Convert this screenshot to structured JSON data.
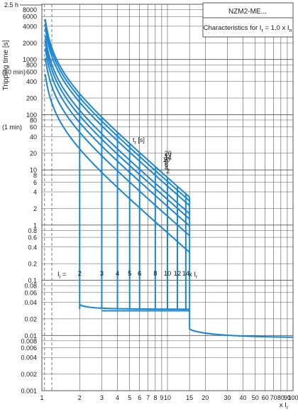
{
  "chart_data": {
    "type": "line",
    "title": "NZM2-ME...",
    "subtitle": {
      "text": "Characteristics for I",
      "sub1": "r",
      "mid": " = 1,0 x I",
      "sub2": "n"
    },
    "ylabel": "Tripping time [s]",
    "xlabel": {
      "prefix": "x I",
      "sub": "r"
    },
    "x_scale": "log",
    "y_scale": "log",
    "xlim": [
      1,
      100
    ],
    "ylim": [
      0.001,
      10000
    ],
    "x_ticks": [
      "1",
      "2",
      "3",
      "4",
      "5",
      "6",
      "7",
      "8",
      "9",
      "10",
      "15",
      "20",
      "30",
      "40",
      "50",
      "60",
      "70",
      "80",
      "90",
      "100"
    ],
    "y_ticks": [
      "0.001",
      "0.002",
      "0.004",
      "0.006",
      "0.008",
      "0.01",
      "0.02",
      "0.04",
      "0.06",
      "0.08",
      "0.1",
      "0.2",
      "0.4",
      "0.6",
      "0.8",
      "1",
      "2",
      "4",
      "6",
      "8",
      "10",
      "20",
      "40",
      "60",
      "80",
      "100",
      "200",
      "400",
      "600",
      "800",
      "1000",
      "2000",
      "4000",
      "6000",
      "8000"
    ],
    "y_extra_labels": {
      "top": "2.5 h",
      "ten_min": "(10 min)",
      "one_min": "(1 min)"
    },
    "tr_label": {
      "prefix": "t",
      "sub": "r",
      "suffix": " [s]"
    },
    "tr_values": [
      20,
      17,
      14,
      10,
      8,
      6,
      4,
      2
    ],
    "ii_label": {
      "prefix": "I",
      "sub": "i",
      "suffix": " ="
    },
    "ii_values": [
      "2",
      "3",
      "4",
      "5",
      "6",
      "8",
      "10",
      "12",
      "14"
    ],
    "ii_tail": {
      "prefix": "x I",
      "sub": "r"
    },
    "ii_threshold_multiples": [
      2,
      3,
      4,
      5,
      6,
      8,
      10,
      12,
      14,
      15
    ],
    "short_delay_time_s": 0.03,
    "instantaneous_threshold_multiple": 15,
    "grid": true,
    "colors": {
      "curve": "#1a86d4",
      "grid": "#555555",
      "text": "#1a1a1a",
      "dashed": "#7a7a7a"
    }
  }
}
